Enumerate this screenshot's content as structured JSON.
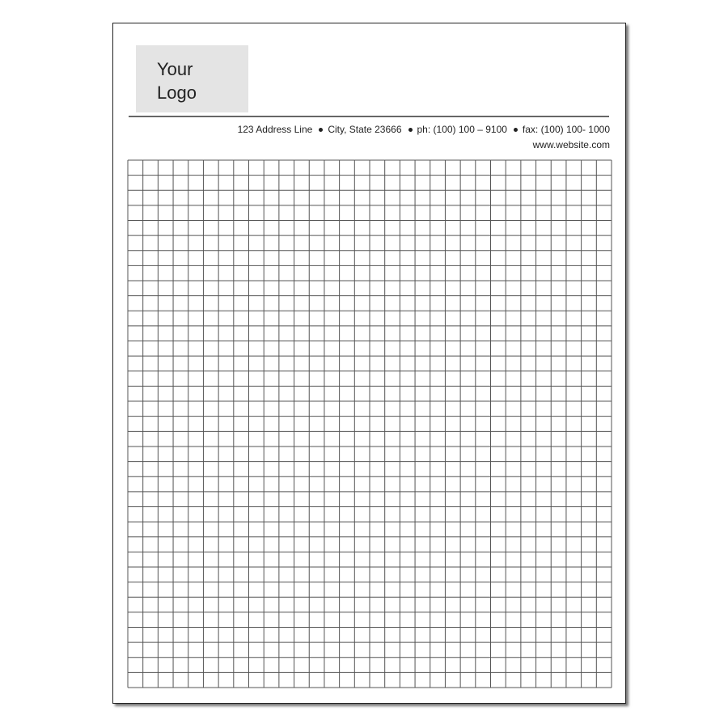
{
  "logo": {
    "line1": "Your",
    "line2": "Logo"
  },
  "contact": {
    "address": "123 Address Line",
    "city": "City, State 23666",
    "phone": "ph: (100) 100 – 9100",
    "fax": "fax: (100) 100- 1000",
    "website": "www.website.com"
  },
  "grid": {
    "columns": 32,
    "rows": 35,
    "line_color": "#555555"
  }
}
